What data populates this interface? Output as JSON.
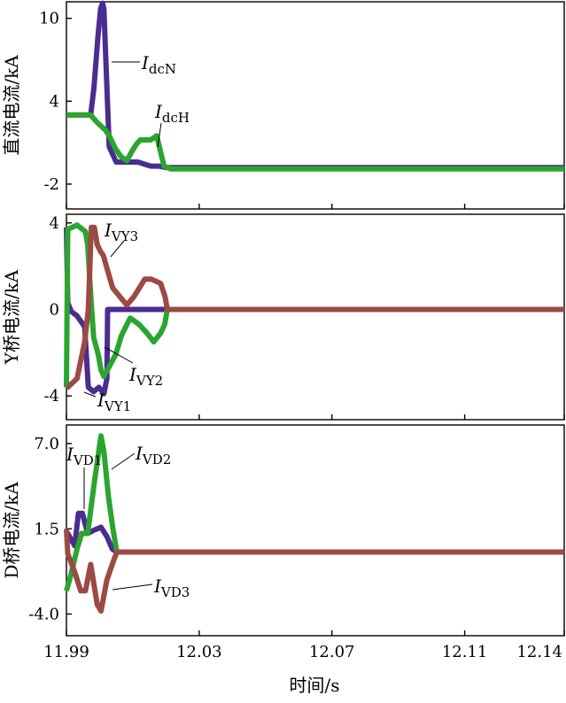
{
  "xlabel": "时间/s",
  "x_ticks": [
    {
      "value": 11.99,
      "label": "11.99"
    },
    {
      "value": 12.03,
      "label": "12.03"
    },
    {
      "value": 12.07,
      "label": "12.07"
    },
    {
      "value": 12.11,
      "label": "12.11"
    },
    {
      "value": 12.14,
      "label": "12.14"
    }
  ],
  "xlim": [
    11.99,
    12.14
  ],
  "colors": {
    "purple": "#4b2c90",
    "green": "#2ba52f",
    "brown": "#9b4a44",
    "axis": "#000000"
  },
  "chart_data": [
    {
      "type": "line",
      "ylabel": "直流电流/kA",
      "ylim": [
        -3.8,
        11.2
      ],
      "y_ticks": [
        {
          "value": 10,
          "label": "10"
        },
        {
          "value": 4,
          "label": "4"
        },
        {
          "value": -2,
          "label": "-2"
        }
      ],
      "series": [
        {
          "name": "I_dcN",
          "label_main": "I",
          "label_sub": "dcN",
          "color": "#4b2c90",
          "x": [
            11.99,
            11.9973,
            11.9983,
            11.9995,
            12.0003,
            12.0009,
            12.0013,
            12.0018,
            12.0029,
            12.005,
            12.0079,
            12.01,
            12.0115,
            12.0154,
            12.0178,
            12.02,
            12.14
          ],
          "y": [
            3.0,
            3.0,
            5.0,
            8.7,
            10.7,
            11.1,
            10.7,
            7.5,
            0.7,
            -0.4,
            -0.4,
            -0.4,
            -0.4,
            -0.7,
            -0.7,
            -0.8,
            -0.8
          ]
        },
        {
          "name": "I_dcH",
          "label_main": "I",
          "label_sub": "dcH",
          "color": "#2ba52f",
          "x": [
            11.99,
            11.9973,
            11.9991,
            12.0018,
            12.0029,
            12.0047,
            12.0064,
            12.0082,
            12.0098,
            12.0111,
            12.0123,
            12.0154,
            12.0172,
            12.0183,
            12.0194,
            12.0215,
            12.14
          ],
          "y": [
            3.0,
            3.0,
            2.5,
            1.9,
            1.5,
            0.6,
            0.0,
            -0.3,
            0.4,
            0.9,
            1.2,
            1.2,
            1.5,
            0.4,
            -0.7,
            -0.9,
            -0.9
          ]
        }
      ],
      "annotations": [
        {
          "main": "I",
          "sub": "dcN",
          "series": "I_dcN"
        },
        {
          "main": "I",
          "sub": "dcH",
          "series": "I_dcH"
        }
      ]
    },
    {
      "type": "line",
      "ylabel": "Y桥电流/kA",
      "ylim": [
        -5.1,
        4.4
      ],
      "y_ticks": [
        {
          "value": 4,
          "label": "4"
        },
        {
          "value": 0,
          "label": "0"
        },
        {
          "value": -4,
          "label": "-4"
        }
      ],
      "series": [
        {
          "name": "I_VY1",
          "label_main": "I",
          "label_sub": "VY1",
          "color": "#4b2c90",
          "x": [
            11.99,
            11.9904,
            11.9915,
            11.9932,
            11.9955,
            11.9966,
            11.9982,
            11.9998,
            12.0013,
            12.0022,
            12.0024,
            12.14
          ],
          "y": [
            3.8,
            0.3,
            -0.1,
            -0.3,
            -0.8,
            -3.6,
            -3.8,
            -3.6,
            -3.9,
            -3.2,
            0.0,
            0.0
          ]
        },
        {
          "name": "I_VY2",
          "label_main": "I",
          "label_sub": "VY2",
          "color": "#2ba52f",
          "x": [
            11.99,
            11.9904,
            11.9932,
            11.9957,
            11.9964,
            11.9973,
            11.9982,
            11.9996,
            12.0004,
            12.0013,
            12.0048,
            12.0066,
            12.0092,
            12.0119,
            12.0143,
            12.0163,
            12.0184,
            12.0196,
            12.0204,
            12.14
          ],
          "y": [
            -3.6,
            3.7,
            3.9,
            3.6,
            3.0,
            0.7,
            -1.3,
            -2.1,
            -2.8,
            -3.1,
            -2.1,
            -1.2,
            -0.4,
            -0.7,
            -1.1,
            -1.5,
            -1.1,
            -0.7,
            0.0,
            0.0
          ]
        },
        {
          "name": "I_VY3",
          "label_main": "I",
          "label_sub": "VY3",
          "color": "#9b4a44",
          "x": [
            11.99,
            11.9904,
            11.9918,
            11.9932,
            11.9955,
            11.9966,
            11.9975,
            11.9984,
            11.9993,
            12.0002,
            12.0011,
            12.0039,
            12.0082,
            12.0104,
            12.0136,
            12.0156,
            12.0184,
            12.0197,
            12.0204,
            12.14
          ],
          "y": [
            -3.6,
            -3.6,
            -3.4,
            -3.2,
            -1.5,
            0.0,
            3.8,
            3.8,
            3.0,
            2.7,
            2.5,
            1.0,
            0.2,
            0.6,
            1.4,
            1.4,
            1.2,
            0.6,
            0.0,
            0.0
          ]
        }
      ],
      "annotations": [
        {
          "main": "I",
          "sub": "VY3",
          "series": "I_VY3"
        },
        {
          "main": "I",
          "sub": "VY2",
          "series": "I_VY2"
        },
        {
          "main": "I",
          "sub": "VY1",
          "series": "I_VY1"
        }
      ]
    },
    {
      "type": "line",
      "ylabel": "D桥电流/kA",
      "ylim": [
        -5.4,
        8.2
      ],
      "y_ticks": [
        {
          "value": 7.0,
          "label": "7.0"
        },
        {
          "value": 1.5,
          "label": "1.5"
        },
        {
          "value": -4.0,
          "label": "-4.0"
        }
      ],
      "series": [
        {
          "name": "I_VD1",
          "label_main": "I",
          "label_sub": "VD1",
          "color": "#4b2c90",
          "x": [
            11.99,
            11.9904,
            11.9925,
            11.9936,
            11.9948,
            11.9964,
            11.9982,
            12.0004,
            12.0022,
            12.0038,
            12.0052,
            12.14
          ],
          "y": [
            1.0,
            1.2,
            0.4,
            2.5,
            2.5,
            1.2,
            1.4,
            1.6,
            1.0,
            0.2,
            0.0,
            0.0
          ]
        },
        {
          "name": "I_VD2",
          "label_main": "I",
          "label_sub": "VD2",
          "color": "#2ba52f",
          "x": [
            11.99,
            11.9913,
            11.9932,
            11.9946,
            11.9964,
            11.9984,
            12.0004,
            12.0013,
            12.0027,
            12.004,
            12.0052,
            12.14
          ],
          "y": [
            -2.5,
            -1.5,
            0.2,
            1.2,
            1.2,
            4.5,
            7.5,
            6.5,
            3.5,
            1.5,
            0.0,
            0.0
          ]
        },
        {
          "name": "I_VD3",
          "label_main": "I",
          "label_sub": "VD3",
          "color": "#9b4a44",
          "x": [
            11.99,
            11.9904,
            11.9925,
            11.9943,
            11.9957,
            11.9973,
            11.9993,
            12.0004,
            12.0022,
            12.0038,
            12.0052,
            12.14
          ],
          "y": [
            1.5,
            -0.1,
            -1.3,
            -2.5,
            -2.5,
            -0.8,
            -3.4,
            -3.8,
            -1.8,
            -0.8,
            0.0,
            0.0
          ]
        }
      ],
      "annotations": [
        {
          "main": "I",
          "sub": "VD1",
          "series": "I_VD1"
        },
        {
          "main": "I",
          "sub": "VD2",
          "series": "I_VD2"
        },
        {
          "main": "I",
          "sub": "VD3",
          "series": "I_VD3"
        }
      ]
    }
  ]
}
